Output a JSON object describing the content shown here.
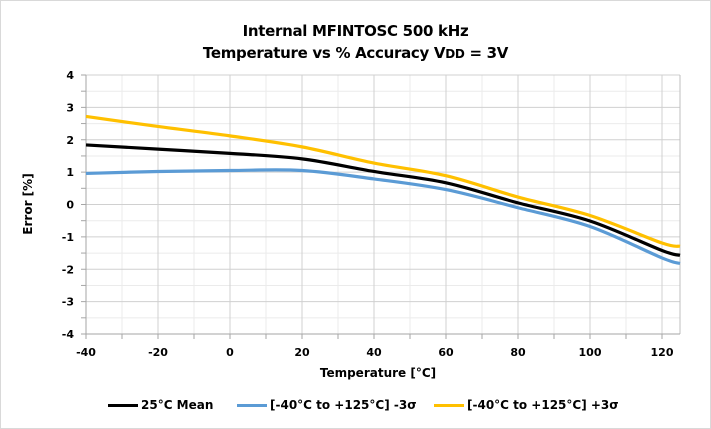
{
  "chart_data": {
    "type": "line",
    "title_line1": "Internal MFINTOSC 500 kHz",
    "title_line2_prefix": "Temperature vs % Accuracy  V",
    "title_line2_sub": "DD",
    "title_line2_suffix": " = 3V",
    "xlabel": "Temperature [°C]",
    "ylabel": "Error [%]",
    "xlim": [
      -40,
      125
    ],
    "ylim": [
      -4,
      4
    ],
    "x_ticks": [
      -40,
      -20,
      0,
      20,
      40,
      60,
      80,
      100,
      120
    ],
    "x_tick_labels": [
      "-40",
      "-20",
      "0",
      "20",
      "40",
      "60",
      "80",
      "100",
      "120"
    ],
    "y_ticks": [
      -4,
      -3,
      -2,
      -1,
      0,
      1,
      2,
      3,
      4
    ],
    "y_tick_labels": [
      "-4",
      "-3",
      "-2",
      "-1",
      "0",
      "1",
      "2",
      "3",
      "4"
    ],
    "x_minor_step": 10,
    "y_minor_step": 0.5,
    "grid": true,
    "legend_position": "bottom",
    "x": [
      -40,
      -20,
      0,
      20,
      40,
      60,
      80,
      100,
      120,
      125
    ],
    "series": [
      {
        "name": "25°C Mean",
        "color": "#000000",
        "values": [
          1.84,
          1.71,
          1.58,
          1.41,
          1.02,
          0.67,
          0.05,
          -0.51,
          -1.42,
          -1.57
        ]
      },
      {
        "name": "[-40°C to +125°C]  -3σ",
        "color": "#5b9bd5",
        "values": [
          0.96,
          1.02,
          1.05,
          1.05,
          0.79,
          0.46,
          -0.1,
          -0.68,
          -1.65,
          -1.82
        ]
      },
      {
        "name": "[-40°C to +125°C] +3σ",
        "color": "#ffc000",
        "values": [
          2.72,
          2.41,
          2.12,
          1.78,
          1.28,
          0.89,
          0.23,
          -0.34,
          -1.19,
          -1.29
        ]
      }
    ]
  }
}
